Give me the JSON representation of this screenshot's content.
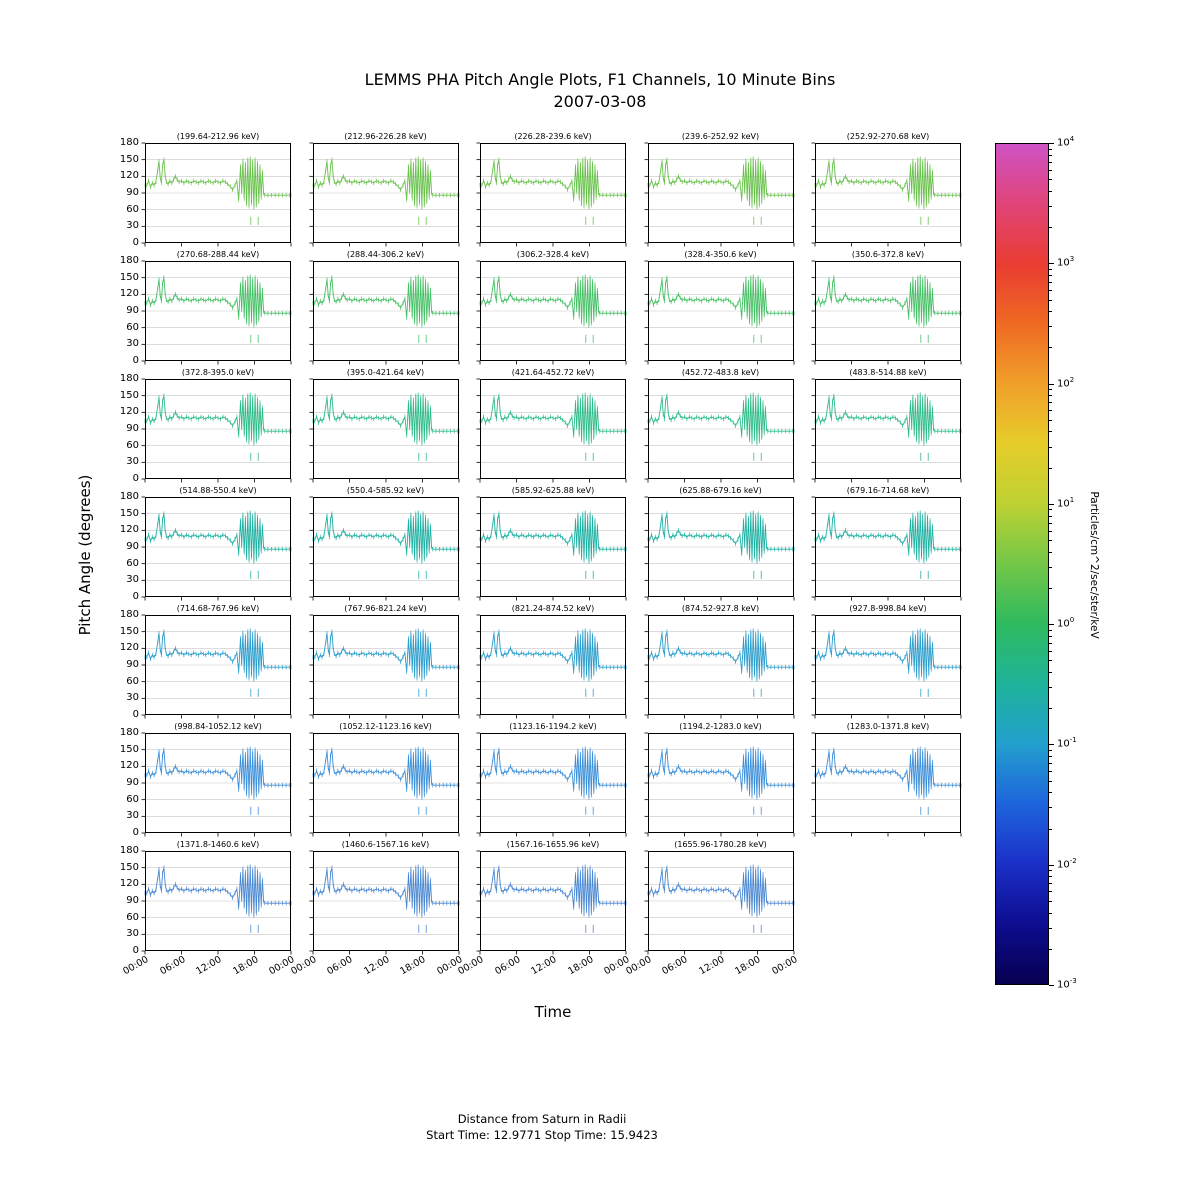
{
  "title": "LEMMS PHA Pitch Angle Plots, F1 Channels,  10 Minute Bins",
  "subtitle": "2007-03-08",
  "xlabel": "Time",
  "ylabel": "Pitch Angle (degrees)",
  "footer": {
    "line1": "Distance from Saturn in Radii",
    "line2": "Start Time: 12.9771 Stop Time: 15.9423"
  },
  "colorbar": {
    "label": "Particles/cm^2/sec/ster/keV",
    "scale": "log",
    "tick_exponents": [
      4,
      3,
      2,
      1,
      0,
      -1,
      -2,
      -3
    ],
    "gradient_stops": [
      {
        "p": 0.0,
        "c": "#070051"
      },
      {
        "p": 0.071,
        "c": "#0d0d8f"
      },
      {
        "p": 0.143,
        "c": "#1b30c8"
      },
      {
        "p": 0.214,
        "c": "#1e64dc"
      },
      {
        "p": 0.286,
        "c": "#22a0cd"
      },
      {
        "p": 0.357,
        "c": "#1fb39b"
      },
      {
        "p": 0.429,
        "c": "#2eba5e"
      },
      {
        "p": 0.5,
        "c": "#74c748"
      },
      {
        "p": 0.571,
        "c": "#bdd133"
      },
      {
        "p": 0.643,
        "c": "#e6cd29"
      },
      {
        "p": 0.714,
        "c": "#f0a02a"
      },
      {
        "p": 0.786,
        "c": "#ef6a23"
      },
      {
        "p": 0.857,
        "c": "#e93c31"
      },
      {
        "p": 0.929,
        "c": "#e04579"
      },
      {
        "p": 1.0,
        "c": "#cf52c5"
      }
    ]
  },
  "chart_data": {
    "type": "line",
    "bin_minutes": 10,
    "x_range_hours": [
      0,
      24
    ],
    "x_tick_hours": [
      0,
      6,
      12,
      18,
      24
    ],
    "x_tick_labels": [
      "00:00",
      "06:00",
      "12:00",
      "18:00",
      "00:00"
    ],
    "y_ticks": [
      0,
      30,
      60,
      90,
      120,
      150,
      180
    ],
    "ylim": [
      0,
      180
    ],
    "grid": "horizontal",
    "profile_points": [
      [
        0.0,
        104
      ],
      [
        0.3,
        104
      ],
      [
        0.6,
        112
      ],
      [
        0.9,
        101
      ],
      [
        1.2,
        108
      ],
      [
        1.5,
        104
      ],
      [
        1.8,
        110
      ],
      [
        2.1,
        132
      ],
      [
        2.3,
        147
      ],
      [
        2.5,
        118
      ],
      [
        2.7,
        108
      ],
      [
        2.9,
        140
      ],
      [
        3.1,
        150
      ],
      [
        3.3,
        122
      ],
      [
        3.5,
        110
      ],
      [
        3.8,
        106
      ],
      [
        4.1,
        112
      ],
      [
        4.4,
        108
      ],
      [
        4.7,
        114
      ],
      [
        5.0,
        120
      ],
      [
        5.3,
        114
      ],
      [
        5.6,
        110
      ],
      [
        6.0,
        112
      ],
      [
        6.4,
        108
      ],
      [
        6.8,
        112
      ],
      [
        7.2,
        110
      ],
      [
        7.6,
        108
      ],
      [
        8.0,
        112
      ],
      [
        8.4,
        110
      ],
      [
        8.8,
        108
      ],
      [
        9.2,
        112
      ],
      [
        9.6,
        110
      ],
      [
        10.0,
        108
      ],
      [
        10.4,
        112
      ],
      [
        10.8,
        110
      ],
      [
        11.2,
        108
      ],
      [
        11.6,
        112
      ],
      [
        12.0,
        110
      ],
      [
        12.4,
        108
      ],
      [
        12.8,
        112
      ],
      [
        13.2,
        110
      ],
      [
        13.6,
        106
      ],
      [
        14.0,
        102
      ],
      [
        14.4,
        96
      ],
      [
        14.8,
        104
      ],
      [
        15.1,
        112
      ],
      [
        15.4,
        78
      ],
      [
        15.7,
        138
      ],
      [
        15.9,
        92
      ],
      [
        16.1,
        148
      ],
      [
        16.3,
        80
      ],
      [
        16.5,
        142
      ],
      [
        16.7,
        70
      ],
      [
        16.9,
        150
      ],
      [
        17.1,
        66
      ],
      [
        17.3,
        152
      ],
      [
        17.5,
        72
      ],
      [
        17.7,
        146
      ],
      [
        17.9,
        64
      ],
      [
        18.1,
        150
      ],
      [
        18.3,
        68
      ],
      [
        18.5,
        144
      ],
      [
        18.7,
        74
      ],
      [
        18.9,
        138
      ],
      [
        19.1,
        82
      ],
      [
        19.3,
        128
      ],
      [
        19.5,
        90
      ],
      [
        19.7,
        86
      ],
      [
        20.2,
        86
      ],
      [
        20.8,
        86
      ],
      [
        21.4,
        86
      ],
      [
        22.0,
        86
      ],
      [
        22.6,
        86
      ],
      [
        23.2,
        86
      ],
      [
        23.8,
        86
      ],
      [
        24.0,
        86
      ]
    ],
    "low_marks": [
      [
        17.4,
        40
      ],
      [
        18.6,
        40
      ]
    ],
    "panels": [
      {
        "label": "(199.64-212.96 keV)",
        "color": "#69c24c"
      },
      {
        "label": "(212.96-226.28 keV)",
        "color": "#69c24c"
      },
      {
        "label": "(226.28-239.6 keV)",
        "color": "#69c24c"
      },
      {
        "label": "(239.6-252.92 keV)",
        "color": "#69c24c"
      },
      {
        "label": "(252.92-270.68 keV)",
        "color": "#69c24c"
      },
      {
        "label": "(270.68-288.44 keV)",
        "color": "#46c065"
      },
      {
        "label": "(288.44-306.2 keV)",
        "color": "#46c065"
      },
      {
        "label": "(306.2-328.4 keV)",
        "color": "#46c065"
      },
      {
        "label": "(328.4-350.6 keV)",
        "color": "#46c065"
      },
      {
        "label": "(350.6-372.8 keV)",
        "color": "#46c065"
      },
      {
        "label": "(372.8-395.0 keV)",
        "color": "#2ebd88"
      },
      {
        "label": "(395.0-421.64 keV)",
        "color": "#2ebd88"
      },
      {
        "label": "(421.64-452.72 keV)",
        "color": "#2ebd88"
      },
      {
        "label": "(452.72-483.8 keV)",
        "color": "#2ebd88"
      },
      {
        "label": "(483.8-514.88 keV)",
        "color": "#2ebd88"
      },
      {
        "label": "(514.88-550.4 keV)",
        "color": "#1fb2a3"
      },
      {
        "label": "(550.4-585.92 keV)",
        "color": "#1fb2a3"
      },
      {
        "label": "(585.92-625.88 keV)",
        "color": "#1fb2a3"
      },
      {
        "label": "(625.88-679.16 keV)",
        "color": "#1fb2a3"
      },
      {
        "label": "(679.16-714.68 keV)",
        "color": "#1fb2a3"
      },
      {
        "label": "(714.68-767.96 keV)",
        "color": "#2b9ecd"
      },
      {
        "label": "(767.96-821.24 keV)",
        "color": "#2b9ecd"
      },
      {
        "label": "(821.24-874.52 keV)",
        "color": "#2b9ecd"
      },
      {
        "label": "(874.52-927.8 keV)",
        "color": "#2b9ecd"
      },
      {
        "label": "(927.8-998.84 keV)",
        "color": "#2b9ecd"
      },
      {
        "label": "(998.84-1052.12 keV)",
        "color": "#3c8fda"
      },
      {
        "label": "(1052.12-1123.16 keV)",
        "color": "#3c8fda"
      },
      {
        "label": "(1123.16-1194.2 keV)",
        "color": "#3c8fda"
      },
      {
        "label": "(1194.2-1283.0 keV)",
        "color": "#3c8fda"
      },
      {
        "label": "(1283.0-1371.8 keV)",
        "color": "#3c8fda"
      },
      {
        "label": "(1371.8-1460.6 keV)",
        "color": "#4b88d3"
      },
      {
        "label": "(1460.6-1567.16 keV)",
        "color": "#4b88d3"
      },
      {
        "label": "(1567.16-1655.96 keV)",
        "color": "#4b88d3"
      },
      {
        "label": "(1655.96-1780.28 keV)",
        "color": "#4b88d3"
      }
    ]
  }
}
